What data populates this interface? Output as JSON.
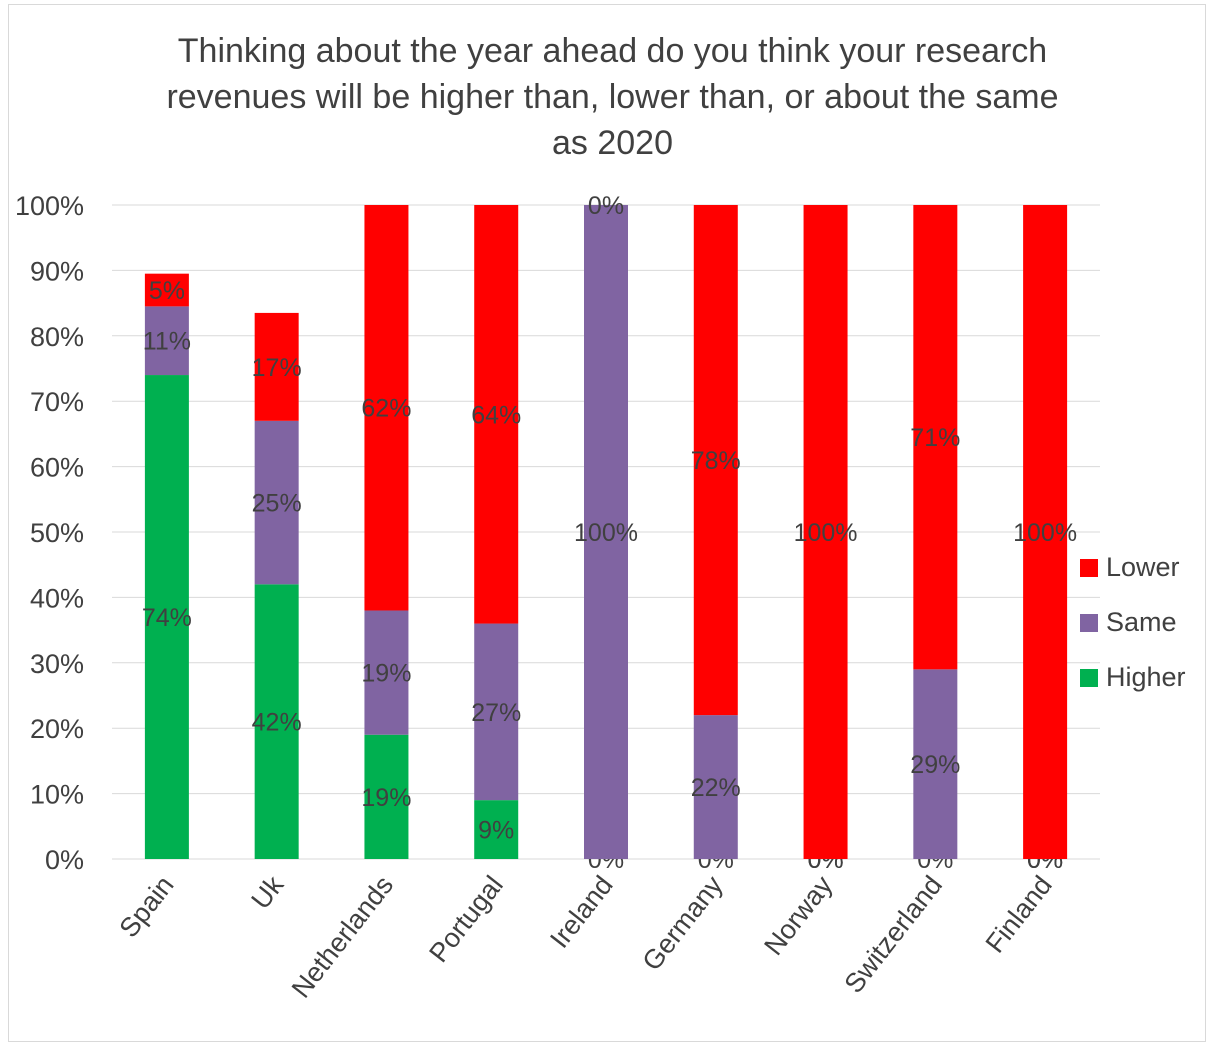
{
  "chart_data": {
    "type": "bar",
    "stacked": true,
    "percent_stacked": true,
    "title": "Thinking about the year ahead do you think your research revenues  will be higher than, lower than, or about the same as 2020",
    "title_lines": [
      "Thinking about the year ahead do you think your research",
      "revenues  will be higher than, lower than, or about the same",
      "as 2020"
    ],
    "categories": [
      "Spain",
      "Uk",
      "Netherlands",
      "Portugal",
      "Ireland",
      "Germany",
      "Norway",
      "Switzerland",
      "Finland"
    ],
    "series": [
      {
        "name": "Higher",
        "color": "#00b050",
        "values": [
          0.74,
          0.42,
          0.19,
          0.09,
          0,
          0,
          0,
          0,
          0
        ],
        "labels": [
          "74%",
          "42%",
          "19%",
          "9%",
          "0%",
          "0%",
          "0%",
          "0%",
          "0%"
        ]
      },
      {
        "name": "Same",
        "color": "#8064a2",
        "values": [
          0.105,
          0.25,
          0.19,
          0.27,
          1.0,
          0.22,
          0,
          0.29,
          0
        ],
        "labels": [
          "11%",
          "25%",
          "19%",
          "27%",
          "100%",
          "22%",
          "0%",
          "29%",
          "0%"
        ]
      },
      {
        "name": "Lower",
        "color": "#ff0000",
        "values": [
          0.05,
          0.165,
          0.62,
          0.64,
          0,
          0.78,
          1.0,
          0.71,
          1.0
        ],
        "labels": [
          "5%",
          "17%",
          "62%",
          "64%",
          "0%",
          "78%",
          "100%",
          "71%",
          "100%"
        ]
      }
    ],
    "ylim": [
      0,
      1
    ],
    "yticks": [
      "0%",
      "10%",
      "20%",
      "30%",
      "40%",
      "50%",
      "60%",
      "70%",
      "80%",
      "90%",
      "100%"
    ],
    "xlabel": "",
    "ylabel": "",
    "grid": true,
    "legend_position": "right"
  },
  "legend": {
    "items": [
      {
        "label": "Lower",
        "color": "#ff0000"
      },
      {
        "label": "Same",
        "color": "#8064a2"
      },
      {
        "label": "Higher",
        "color": "#00b050"
      }
    ]
  }
}
